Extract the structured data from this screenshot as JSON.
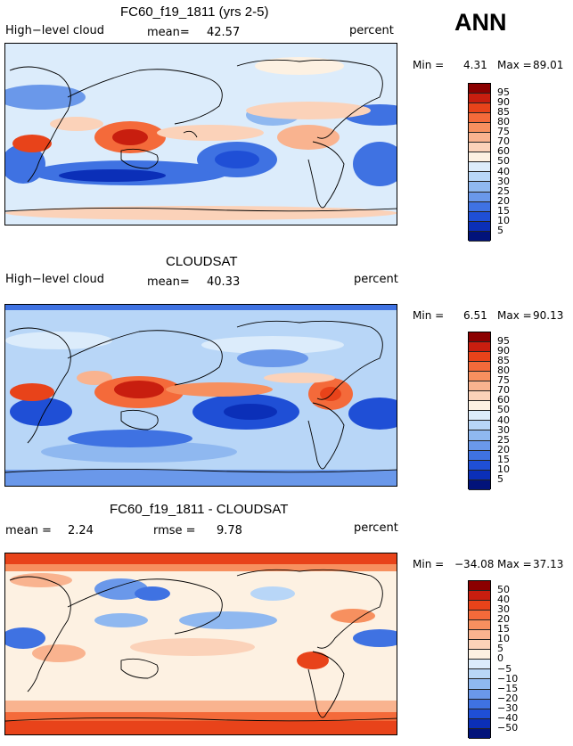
{
  "season": "ANN",
  "chart_data": [
    {
      "type": "heatmap",
      "title": "FC60_f19_1811 (yrs 2-5)",
      "left_label": "High−level cloud",
      "mean_label": "mean=",
      "mean_value": "42.57",
      "units": "percent",
      "min_label": "Min =",
      "min_value": "4.31",
      "max_label": "Max =",
      "max_value": "89.01",
      "levels": [
        "95",
        "90",
        "85",
        "80",
        "75",
        "70",
        "60",
        "50",
        "40",
        "30",
        "25",
        "20",
        "15",
        "10",
        "5"
      ],
      "colors": [
        "#8b0000",
        "#c81e0f",
        "#e8431a",
        "#f46a3a",
        "#f7905f",
        "#f9b38f",
        "#fbd2b9",
        "#fdf1e2",
        "#dcecfb",
        "#b8d6f7",
        "#8fb8f0",
        "#6a98ea",
        "#3f72e2",
        "#1f4fd6",
        "#0b2fb8",
        "#02137a"
      ]
    },
    {
      "type": "heatmap",
      "title": "CLOUDSAT",
      "left_label": "High−level cloud",
      "mean_label": "mean=",
      "mean_value": "40.33",
      "units": "percent",
      "min_label": "Min =",
      "min_value": "6.51",
      "max_label": "Max =",
      "max_value": "90.13",
      "levels": [
        "95",
        "90",
        "85",
        "80",
        "75",
        "70",
        "60",
        "50",
        "40",
        "30",
        "25",
        "20",
        "15",
        "10",
        "5"
      ],
      "colors": [
        "#8b0000",
        "#c81e0f",
        "#e8431a",
        "#f46a3a",
        "#f7905f",
        "#f9b38f",
        "#fbd2b9",
        "#fdf1e2",
        "#dcecfb",
        "#b8d6f7",
        "#8fb8f0",
        "#6a98ea",
        "#3f72e2",
        "#1f4fd6",
        "#0b2fb8",
        "#02137a"
      ]
    },
    {
      "type": "heatmap",
      "title": "FC60_f19_1811 - CLOUDSAT",
      "mean_label": "mean =",
      "mean_value": "2.24",
      "rmse_label": "rmse =",
      "rmse_value": "9.78",
      "units": "percent",
      "min_label": "Min =",
      "min_value": "−34.08",
      "max_label": "Max =",
      "max_value": "37.13",
      "levels": [
        "50",
        "40",
        "30",
        "20",
        "15",
        "10",
        "5",
        "0",
        "−5",
        "−10",
        "−15",
        "−20",
        "−30",
        "−40",
        "−50"
      ],
      "colors": [
        "#8b0000",
        "#c81e0f",
        "#e8431a",
        "#f46a3a",
        "#f7905f",
        "#f9b38f",
        "#fbd2b9",
        "#fdf1e2",
        "#dcecfb",
        "#b8d6f7",
        "#8fb8f0",
        "#6a98ea",
        "#3f72e2",
        "#1f4fd6",
        "#0b2fb8",
        "#02137a"
      ]
    }
  ]
}
